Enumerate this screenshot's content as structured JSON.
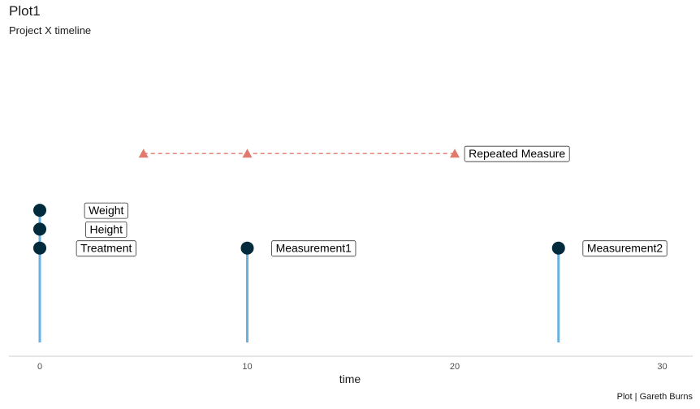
{
  "chart_data": {
    "type": "scatter",
    "title": "Plot1",
    "subtitle": "Project X timeline",
    "xlabel": "time",
    "ylabel": "",
    "caption": "Plot | Gareth Burns",
    "xlim": [
      -1.5,
      31.5
    ],
    "xticks": [
      0,
      10,
      20,
      30
    ],
    "grid": false,
    "colors": {
      "event_point": "#002b3d",
      "stem": "#6ab0e0",
      "repeated": "#e07a6a",
      "axis": "#cccccc"
    },
    "events": [
      {
        "label": "Treatment",
        "time": 0,
        "level": 1
      },
      {
        "label": "Height",
        "time": 0,
        "level": 2
      },
      {
        "label": "Weight",
        "time": 0,
        "level": 3
      },
      {
        "label": "Measurement1",
        "time": 10,
        "level": 1
      },
      {
        "label": "Measurement2",
        "time": 25,
        "level": 1
      }
    ],
    "repeated": {
      "label": "Repeated Measure",
      "times": [
        5,
        10,
        20
      ],
      "level": 6
    }
  }
}
